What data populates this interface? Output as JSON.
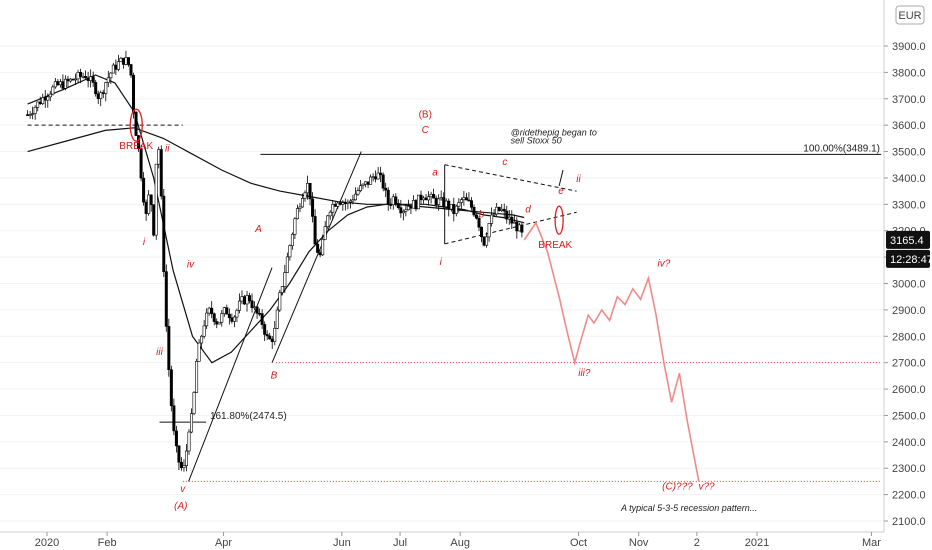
{
  "chart_data": {
    "type": "candlestick",
    "currency_badge": "EUR",
    "price_badge": "3165.4",
    "countdown_badge": "12:28:47",
    "ylim": [
      2100,
      4000
    ],
    "y_ticks": [
      "2100.0",
      "2200.0",
      "2300.0",
      "2400.0",
      "2500.0",
      "2600.0",
      "2700.0",
      "2800.0",
      "2900.0",
      "3000.0",
      "3100.0",
      "3200.0",
      "3300.0",
      "3400.0",
      "3500.0",
      "3600.0",
      "3700.0",
      "3800.0",
      "3900.0"
    ],
    "y_tick_values": [
      2100,
      2200,
      2300,
      2400,
      2500,
      2600,
      2700,
      2800,
      2900,
      3000,
      3100,
      3200,
      3300,
      3400,
      3500,
      3600,
      3700,
      3800,
      3900
    ],
    "x_ticks": [
      {
        "label": "2020",
        "day": 0
      },
      {
        "label": "Feb",
        "day": 31
      },
      {
        "label": "Apr",
        "day": 91
      },
      {
        "label": "Jun",
        "day": 152
      },
      {
        "label": "Jul",
        "day": 182
      },
      {
        "label": "Aug",
        "day": 213
      },
      {
        "label": "Oct",
        "day": 274
      },
      {
        "label": "Nov",
        "day": 305
      },
      {
        "label": "2",
        "day": 335
      },
      {
        "label": "2021",
        "day": 366
      },
      {
        "label": "Mar",
        "day": 425
      }
    ],
    "price_path": [
      [
        -10,
        3640
      ],
      [
        -5,
        3680
      ],
      [
        0,
        3720
      ],
      [
        5,
        3750
      ],
      [
        10,
        3760
      ],
      [
        15,
        3780
      ],
      [
        20,
        3790
      ],
      [
        25,
        3740
      ],
      [
        27,
        3700
      ],
      [
        30,
        3760
      ],
      [
        33,
        3800
      ],
      [
        36,
        3830
      ],
      [
        40,
        3850
      ],
      [
        43,
        3820
      ],
      [
        45,
        3620
      ],
      [
        47,
        3520
      ],
      [
        49,
        3380
      ],
      [
        51,
        3250
      ],
      [
        53,
        3360
      ],
      [
        55,
        3200
      ],
      [
        57,
        3600
      ],
      [
        59,
        3300
      ],
      [
        61,
        2900
      ],
      [
        63,
        2650
      ],
      [
        65,
        2450
      ],
      [
        67,
        2350
      ],
      [
        69,
        2300
      ],
      [
        71,
        2300
      ],
      [
        73,
        2450
      ],
      [
        75,
        2500
      ],
      [
        77,
        2700
      ],
      [
        79,
        2780
      ],
      [
        81,
        2850
      ],
      [
        84,
        2900
      ],
      [
        88,
        2850
      ],
      [
        92,
        2900
      ],
      [
        96,
        2870
      ],
      [
        100,
        2930
      ],
      [
        104,
        2950
      ],
      [
        107,
        2900
      ],
      [
        111,
        2850
      ],
      [
        114,
        2780
      ],
      [
        117,
        2800
      ],
      [
        120,
        2950
      ],
      [
        124,
        3100
      ],
      [
        128,
        3250
      ],
      [
        132,
        3350
      ],
      [
        135,
        3380
      ],
      [
        138,
        3150
      ],
      [
        141,
        3100
      ],
      [
        145,
        3280
      ],
      [
        150,
        3320
      ],
      [
        155,
        3300
      ],
      [
        160,
        3350
      ],
      [
        165,
        3380
      ],
      [
        170,
        3420
      ],
      [
        173,
        3380
      ],
      [
        176,
        3300
      ],
      [
        179,
        3330
      ],
      [
        183,
        3280
      ],
      [
        187,
        3300
      ],
      [
        190,
        3300
      ],
      [
        194,
        3340
      ],
      [
        198,
        3320
      ],
      [
        202,
        3310
      ],
      [
        206,
        3300
      ],
      [
        210,
        3270
      ],
      [
        214,
        3320
      ],
      [
        218,
        3300
      ],
      [
        222,
        3250
      ],
      [
        225,
        3150
      ],
      [
        228,
        3230
      ],
      [
        231,
        3270
      ],
      [
        234,
        3280
      ],
      [
        237,
        3250
      ],
      [
        240,
        3230
      ],
      [
        243,
        3210
      ],
      [
        246,
        3165
      ]
    ],
    "ma_fast": [
      [
        -10,
        3680
      ],
      [
        10,
        3740
      ],
      [
        25,
        3790
      ],
      [
        35,
        3760
      ],
      [
        45,
        3650
      ],
      [
        55,
        3400
      ],
      [
        65,
        3050
      ],
      [
        75,
        2800
      ],
      [
        85,
        2700
      ],
      [
        95,
        2740
      ],
      [
        105,
        2820
      ],
      [
        115,
        2900
      ],
      [
        125,
        3000
      ],
      [
        135,
        3120
      ],
      [
        145,
        3200
      ],
      [
        155,
        3260
      ],
      [
        165,
        3290
      ],
      [
        175,
        3300
      ],
      [
        185,
        3300
      ],
      [
        195,
        3300
      ],
      [
        205,
        3290
      ],
      [
        215,
        3280
      ],
      [
        225,
        3260
      ],
      [
        235,
        3250
      ],
      [
        246,
        3230
      ]
    ],
    "ma_slow": [
      [
        -10,
        3500
      ],
      [
        10,
        3540
      ],
      [
        30,
        3580
      ],
      [
        45,
        3590
      ],
      [
        60,
        3550
      ],
      [
        75,
        3490
      ],
      [
        90,
        3430
      ],
      [
        105,
        3380
      ],
      [
        120,
        3350
      ],
      [
        135,
        3330
      ],
      [
        150,
        3310
      ],
      [
        165,
        3300
      ],
      [
        180,
        3300
      ],
      [
        195,
        3290
      ],
      [
        210,
        3280
      ],
      [
        225,
        3270
      ],
      [
        240,
        3260
      ],
      [
        246,
        3250
      ]
    ],
    "projection_path": [
      [
        246,
        3165
      ],
      [
        252,
        3230
      ],
      [
        258,
        3120
      ],
      [
        264,
        2950
      ],
      [
        268,
        2820
      ],
      [
        272,
        2700
      ],
      [
        275,
        2780
      ],
      [
        279,
        2880
      ],
      [
        282,
        2850
      ],
      [
        286,
        2900
      ],
      [
        290,
        2860
      ],
      [
        294,
        2950
      ],
      [
        298,
        2920
      ],
      [
        302,
        2980
      ],
      [
        306,
        2940
      ],
      [
        310,
        3020
      ],
      [
        314,
        2880
      ],
      [
        318,
        2700
      ],
      [
        322,
        2550
      ],
      [
        326,
        2660
      ],
      [
        330,
        2480
      ],
      [
        336,
        2250
      ]
    ],
    "hlines": [
      {
        "value": 3600,
        "style": "dashed",
        "from_day": -10,
        "to_day": 70
      },
      {
        "value": 3489.1,
        "style": "solid",
        "from_day": 110,
        "to_day": 430
      },
      {
        "value": 2700,
        "style": "dotted-red",
        "from_day": 118,
        "to_day": 430
      },
      {
        "value": 2250,
        "style": "dotted-red",
        "from_day": 70,
        "to_day": 430
      },
      {
        "value": 2474.5,
        "style": "solid",
        "from_day": 58,
        "to_day": 82
      }
    ],
    "labels": {
      "fib_100": "100.00%(3489.1)",
      "fib_161": "161.80%(2474.5)",
      "note_author": "@ridethepig began to",
      "note_author_2": "sell Stoxx 50",
      "footer_note": "A typical 5-3-5 recession pattern...",
      "break_1": "BREAK",
      "break_2": "BREAK",
      "wave_B_paren": "(B)",
      "wave_A_paren": "(A)",
      "wave_C_paren": "(C)???",
      "wave_C": "C",
      "wave_A": "A",
      "wave_B": "B",
      "wave_i": "i",
      "wave_ii": "ii",
      "wave_iii": "iii",
      "wave_iv": "iv",
      "wave_v": "v",
      "sub_a": "a",
      "sub_b": "b",
      "sub_c": "c",
      "sub_d": "d",
      "sub_e": "e",
      "tri_i": "i",
      "tri_ii": "ii",
      "proj_iii": "iii?",
      "proj_iv": "iv?",
      "proj_v": "v??"
    }
  }
}
